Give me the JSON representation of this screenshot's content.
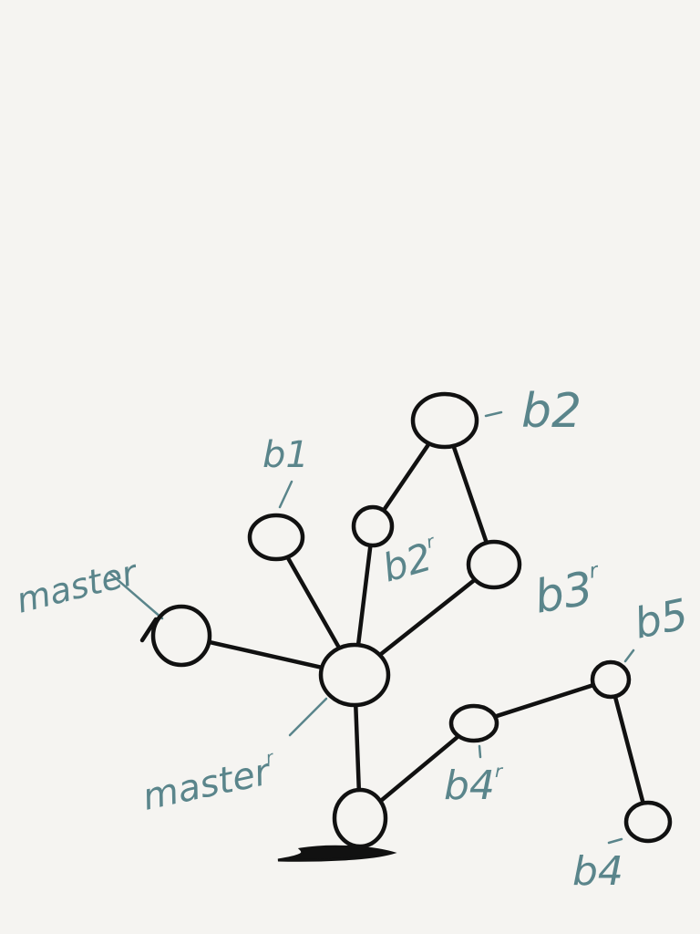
{
  "diagram": {
    "nodes": [
      {
        "id": "master",
        "label": "master"
      },
      {
        "id": "master_r",
        "label": "master",
        "sup": "r"
      },
      {
        "id": "b1",
        "label": "b1"
      },
      {
        "id": "b2",
        "label": "b2"
      },
      {
        "id": "b2_r",
        "label": "b2",
        "sup": "r"
      },
      {
        "id": "b3_r",
        "label": "b3",
        "sup": "r"
      },
      {
        "id": "b4_r",
        "label": "b4",
        "sup": "r"
      },
      {
        "id": "b5",
        "label": "b5"
      },
      {
        "id": "b4",
        "label": "b4"
      },
      {
        "id": "root",
        "label": ""
      }
    ],
    "edges": [
      [
        "master",
        "master_r"
      ],
      [
        "b1",
        "master_r"
      ],
      [
        "b2_r",
        "master_r"
      ],
      [
        "b3_r",
        "master_r"
      ],
      [
        "b2",
        "b2_r"
      ],
      [
        "b2",
        "b3_r"
      ],
      [
        "master_r",
        "root"
      ],
      [
        "root",
        "b4_r"
      ],
      [
        "b4_r",
        "b5"
      ],
      [
        "b5",
        "b4"
      ]
    ]
  }
}
